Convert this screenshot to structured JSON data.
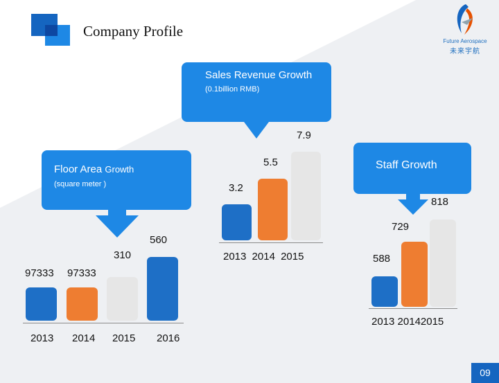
{
  "header": {
    "title": "Company Profile"
  },
  "logo": {
    "line1": "Future Aerospace",
    "line2": "未来宇航"
  },
  "page_number": "09",
  "colors": {
    "blue": "#1e6fc6",
    "orange": "#ee7d31",
    "gray": "#e6e6e6",
    "background_band": "#eef0f3"
  },
  "chart_data": [
    {
      "type": "bar",
      "title": "Sales Revenue Growth",
      "subtitle": "(0.1billion RMB)",
      "categories": [
        "2013",
        "2014",
        "2015"
      ],
      "values": [
        3.2,
        5.5,
        7.9
      ],
      "value_labels": [
        "3.2",
        "5.5",
        "7.9"
      ],
      "colors": [
        "#1e6fc6",
        "#ee7d31",
        "#e6e6e6"
      ]
    },
    {
      "type": "bar",
      "title_main": "Floor Area",
      "title_suffix": "Growth",
      "subtitle": "(square meter )",
      "categories": [
        "2013",
        "2014",
        "2015",
        "2016"
      ],
      "values": [
        97333,
        97333,
        310,
        560
      ],
      "value_labels": [
        "97333",
        "97333",
        "310",
        "560"
      ],
      "colors": [
        "#1e6fc6",
        "#ee7d31",
        "#e6e6e6",
        "#1e6fc6"
      ]
    },
    {
      "type": "bar",
      "title": "Staff Growth",
      "categories": [
        "2013",
        "2014",
        "2015"
      ],
      "tick_text": "2013 20142015",
      "values": [
        588,
        729,
        818
      ],
      "value_labels": [
        "588",
        "729",
        "818"
      ],
      "colors": [
        "#1e6fc6",
        "#ee7d31",
        "#e6e6e6"
      ]
    }
  ]
}
